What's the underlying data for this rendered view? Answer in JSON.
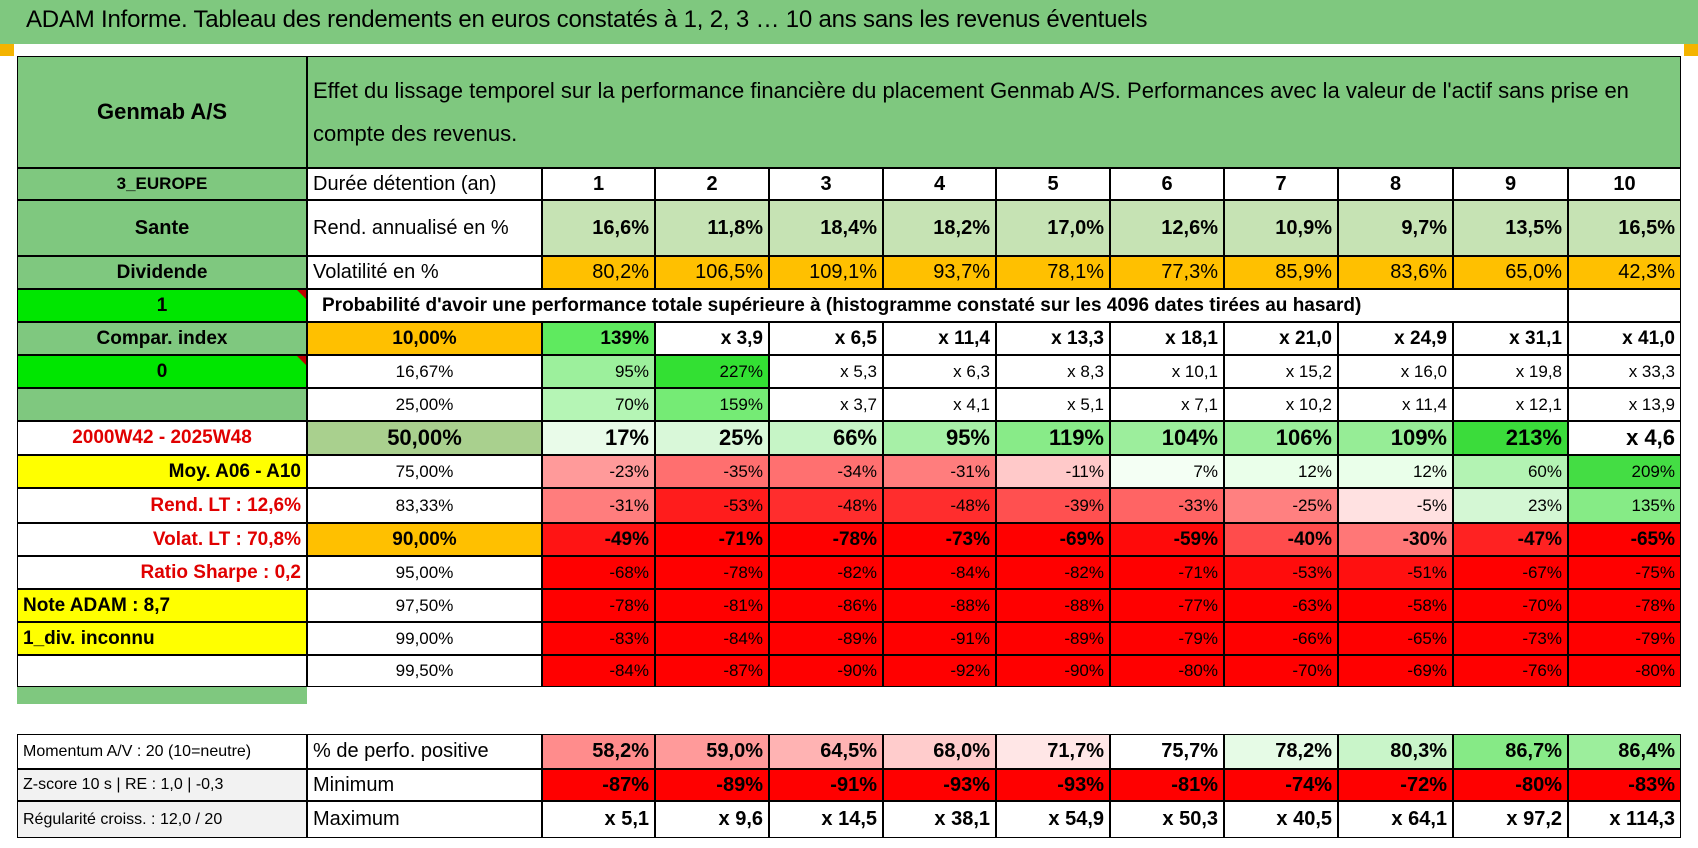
{
  "title": "ADAM Informe. Tableau des rendements en euros constatés à 1, 2, 3 … 10 ans sans les revenus éventuels",
  "heading": "Effet du lissage temporel sur la performance financière du placement Genmab A/S. Performances avec la valeur de l'actif sans prise en compte des revenus.",
  "left": {
    "name": "Genmab A/S",
    "region": "3_EUROPE",
    "sector": "Sante",
    "dividend": "Dividende",
    "one": "1",
    "compar": "Compar. index",
    "zero": "0",
    "period": "2000W42 - 2025W48",
    "moy": "Moy. A06 - A10",
    "rend_lt": "Rend. LT :    12,6%",
    "volat_lt": "Volat. LT :    70,8%",
    "sharpe": "Ratio Sharpe :    0,2",
    "note": "Note ADAM : 8,7",
    "div_inconnu": "1_div. inconnu",
    "momentum": "Momentum A/V : 20 (10=neutre)",
    "zscore": "Z-score 10 s | RE : 1,0 | -0,3",
    "regularite": "Régularité croiss. : 12,0 / 20"
  },
  "labels": {
    "duree": "Durée détention (an)",
    "rend": "Rend. annualisé en %",
    "volat": "Volatilité en %",
    "proba": "Probabilité d'avoir une performance totale supérieure à (histogramme constaté sur les 4096 dates tirées au hasard)",
    "positive": "% de perfo. positive",
    "minimum": "Minimum",
    "maximum": "Maximum"
  },
  "years": [
    "1",
    "2",
    "3",
    "4",
    "5",
    "6",
    "7",
    "8",
    "9",
    "10"
  ],
  "rend": [
    "16,6%",
    "11,8%",
    "18,4%",
    "18,2%",
    "17,0%",
    "12,6%",
    "10,9%",
    "9,7%",
    "13,5%",
    "16,5%"
  ],
  "volat": [
    "80,2%",
    "106,5%",
    "109,1%",
    "93,7%",
    "78,1%",
    "77,3%",
    "85,9%",
    "83,6%",
    "65,0%",
    "42,3%"
  ],
  "quantiles": [
    {
      "q": "10,00%",
      "v": [
        "139%",
        "x 3,9",
        "x 6,5",
        "x 11,4",
        "x 13,3",
        "x 18,1",
        "x 21,0",
        "x 24,9",
        "x 31,1",
        "x 41,0"
      ]
    },
    {
      "q": "16,67%",
      "v": [
        "95%",
        "227%",
        "x 5,3",
        "x 6,3",
        "x 8,3",
        "x 10,1",
        "x 15,2",
        "x 16,0",
        "x 19,8",
        "x 33,3"
      ]
    },
    {
      "q": "25,00%",
      "v": [
        "70%",
        "159%",
        "x 3,7",
        "x 4,1",
        "x 5,1",
        "x 7,1",
        "x 10,2",
        "x 11,4",
        "x 12,1",
        "x 13,9"
      ]
    },
    {
      "q": "50,00%",
      "v": [
        "17%",
        "25%",
        "66%",
        "95%",
        "119%",
        "104%",
        "106%",
        "109%",
        "213%",
        "x 4,6"
      ]
    },
    {
      "q": "75,00%",
      "v": [
        "-23%",
        "-35%",
        "-34%",
        "-31%",
        "-11%",
        "7%",
        "12%",
        "12%",
        "60%",
        "209%"
      ]
    },
    {
      "q": "83,33%",
      "v": [
        "-31%",
        "-53%",
        "-48%",
        "-48%",
        "-39%",
        "-33%",
        "-25%",
        "-5%",
        "23%",
        "135%"
      ]
    },
    {
      "q": "90,00%",
      "v": [
        "-49%",
        "-71%",
        "-78%",
        "-73%",
        "-69%",
        "-59%",
        "-40%",
        "-30%",
        "-47%",
        "-65%"
      ]
    },
    {
      "q": "95,00%",
      "v": [
        "-68%",
        "-78%",
        "-82%",
        "-84%",
        "-82%",
        "-71%",
        "-53%",
        "-51%",
        "-67%",
        "-75%"
      ]
    },
    {
      "q": "97,50%",
      "v": [
        "-78%",
        "-81%",
        "-86%",
        "-88%",
        "-88%",
        "-77%",
        "-63%",
        "-58%",
        "-70%",
        "-78%"
      ]
    },
    {
      "q": "99,00%",
      "v": [
        "-83%",
        "-84%",
        "-89%",
        "-91%",
        "-89%",
        "-79%",
        "-66%",
        "-65%",
        "-73%",
        "-79%"
      ]
    },
    {
      "q": "99,50%",
      "v": [
        "-84%",
        "-87%",
        "-90%",
        "-92%",
        "-90%",
        "-80%",
        "-70%",
        "-69%",
        "-76%",
        "-80%"
      ]
    }
  ],
  "positive": [
    "58,2%",
    "59,0%",
    "64,5%",
    "68,0%",
    "71,7%",
    "75,7%",
    "78,2%",
    "80,3%",
    "86,7%",
    "86,4%"
  ],
  "minimum": [
    "-87%",
    "-89%",
    "-91%",
    "-93%",
    "-93%",
    "-81%",
    "-74%",
    "-72%",
    "-80%",
    "-83%"
  ],
  "maximum": [
    "x 5,1",
    "x 9,6",
    "x 14,5",
    "x 38,1",
    "x 54,9",
    "x 50,3",
    "x 40,5",
    "x 64,1",
    "x 97,2",
    "x 114,3"
  ],
  "colors": {
    "header_green": "#7fc87f",
    "bright_green": "#00e600",
    "rend_green": "#c6e3b4",
    "orange": "#ffc000",
    "yellow": "#ffff00",
    "red": "#ff0000",
    "text_red": "#e00000"
  },
  "quantile_fills": [
    [
      "#5fea5f",
      "#ffffff",
      "#ffffff",
      "#ffffff",
      "#ffffff",
      "#ffffff",
      "#ffffff",
      "#ffffff",
      "#ffffff",
      "#ffffff"
    ],
    [
      "#9cf09c",
      "#33e033",
      "#ffffff",
      "#ffffff",
      "#ffffff",
      "#ffffff",
      "#ffffff",
      "#ffffff",
      "#ffffff",
      "#ffffff"
    ],
    [
      "#b5f5b5",
      "#75eb75",
      "#ffffff",
      "#ffffff",
      "#ffffff",
      "#ffffff",
      "#ffffff",
      "#ffffff",
      "#ffffff",
      "#ffffff"
    ],
    [
      "#e9fbe9",
      "#d9f8d9",
      "#c6f5c6",
      "#a7f0a7",
      "#88eb88",
      "#9cee9c",
      "#9aee9a",
      "#96ed96",
      "#3bdc3b",
      "#ffffff"
    ],
    [
      "#ff9a9a",
      "#ff6f6f",
      "#ff7070",
      "#ff7d7d",
      "#ffc9c9",
      "#f4fff4",
      "#eaffea",
      "#eaffea",
      "#b3f3b3",
      "#44dd44"
    ],
    [
      "#ff7d7d",
      "#ff1c1c",
      "#ff2d2d",
      "#ff2d2d",
      "#ff5050",
      "#ff6464",
      "#ff8080",
      "#ffe1e1",
      "#d4f7d4",
      "#86eb86"
    ],
    [
      "#ff1414",
      "#ff0000",
      "#ff0000",
      "#ff0000",
      "#ff0000",
      "#ff0a0a",
      "#ff4c4c",
      "#ff7777",
      "#ff2222",
      "#ff0000"
    ],
    [
      "#ff0000",
      "#ff0000",
      "#ff0000",
      "#ff0000",
      "#ff0000",
      "#ff0000",
      "#ff0c0c",
      "#ff1010",
      "#ff0000",
      "#ff0000"
    ],
    [
      "#ff0000",
      "#ff0000",
      "#ff0000",
      "#ff0000",
      "#ff0000",
      "#ff0000",
      "#ff0000",
      "#ff0000",
      "#ff0000",
      "#ff0000"
    ],
    [
      "#ff0000",
      "#ff0000",
      "#ff0000",
      "#ff0000",
      "#ff0000",
      "#ff0000",
      "#ff0000",
      "#ff0000",
      "#ff0000",
      "#ff0000"
    ],
    [
      "#ff0000",
      "#ff0000",
      "#ff0000",
      "#ff0000",
      "#ff0000",
      "#ff0000",
      "#ff0000",
      "#ff0000",
      "#ff0000",
      "#ff0000"
    ]
  ],
  "positive_fills": [
    "#ff8c8c",
    "#ff9a9a",
    "#ffb3b3",
    "#ffcccc",
    "#ffe6e6",
    "#ffffff",
    "#e6fbe6",
    "#c9f5c9",
    "#86ea86",
    "#9cee9c"
  ]
}
